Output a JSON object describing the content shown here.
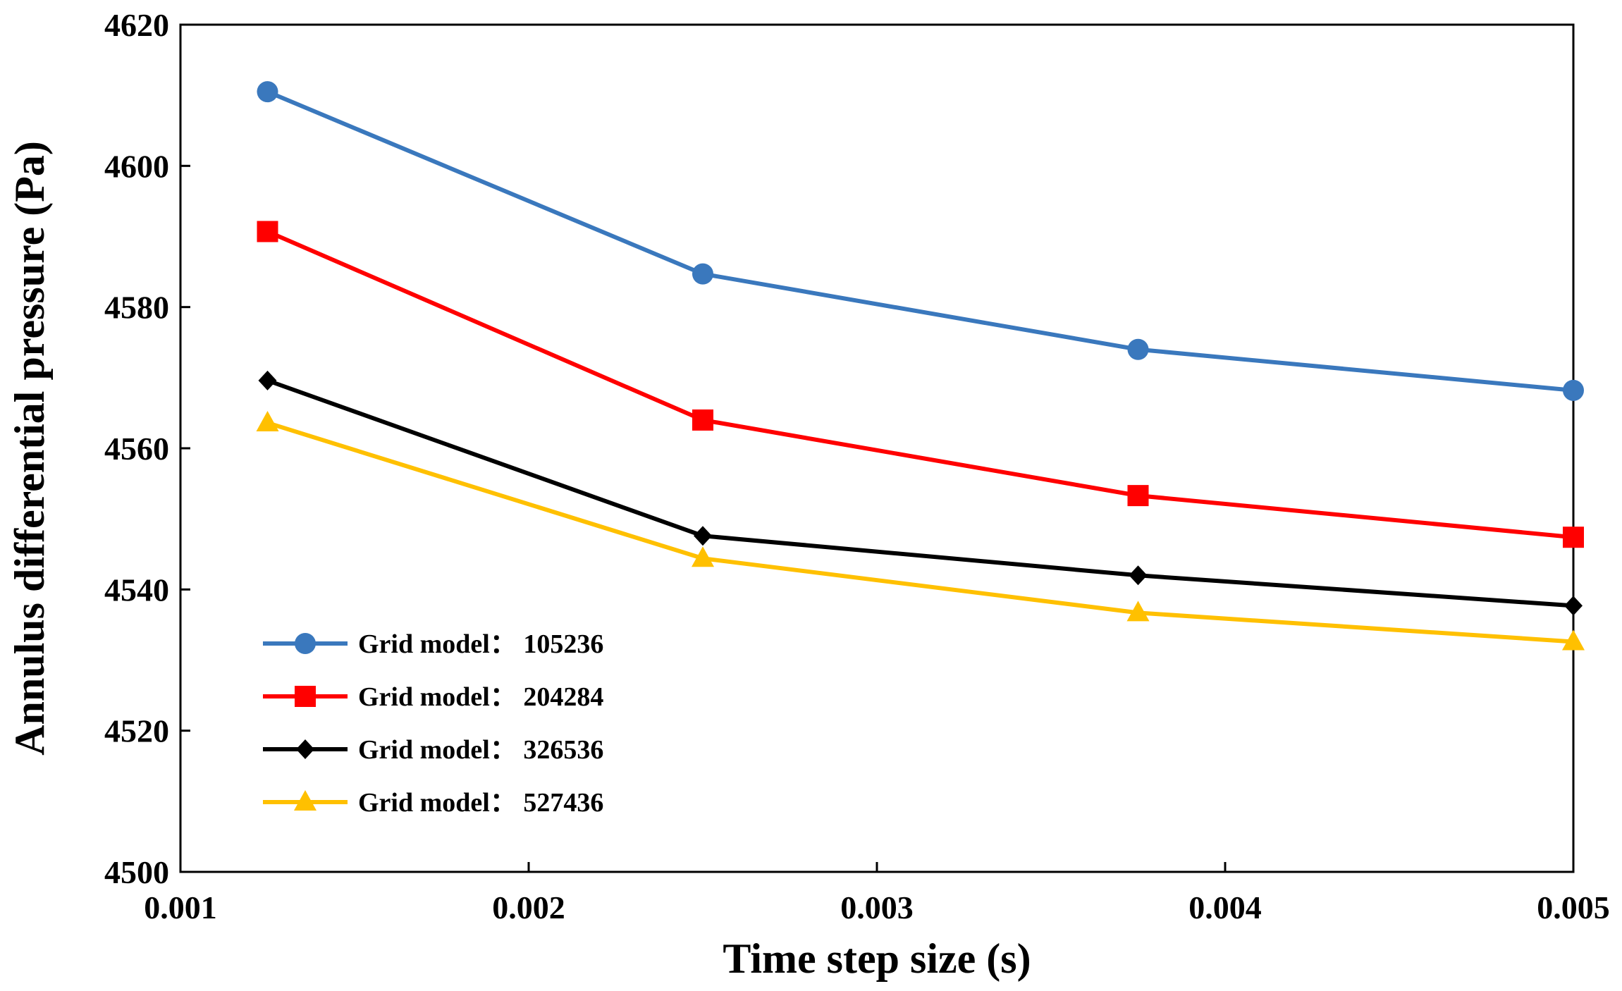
{
  "chart_data": {
    "type": "line",
    "xlabel": "Time step size (s)",
    "ylabel": "Annulus differential pressure (Pa)",
    "xlim": [
      0.001,
      0.005
    ],
    "ylim": [
      4500,
      4620
    ],
    "xticks": [
      0.001,
      0.002,
      0.003,
      0.004,
      0.005
    ],
    "xtick_labels": [
      "0.001",
      "0.002",
      "0.003",
      "0.004",
      "0.005"
    ],
    "yticks": [
      4500,
      4520,
      4540,
      4560,
      4580,
      4600,
      4620
    ],
    "ytick_labels": [
      "4500",
      "4520",
      "4540",
      "4560",
      "4580",
      "4600",
      "4620"
    ],
    "grid": false,
    "legend_position": "bottom-left",
    "x": [
      0.00125,
      0.0025,
      0.00375,
      0.005
    ],
    "series": [
      {
        "name": "Grid model： 105236",
        "color": "#3a78bd",
        "marker": "circle",
        "values": [
          4610.5,
          4584.7,
          4574.0,
          4568.2
        ]
      },
      {
        "name": "Grid model： 204284",
        "color": "#ff0000",
        "marker": "square",
        "values": [
          4590.7,
          4564.0,
          4553.3,
          4547.4
        ]
      },
      {
        "name": "Grid model： 326536",
        "color": "#000000",
        "marker": "diamond",
        "values": [
          4569.6,
          4547.6,
          4542.0,
          4537.7
        ]
      },
      {
        "name": "Grid model： 527436",
        "color": "#ffc000",
        "marker": "triangle",
        "values": [
          4563.6,
          4544.4,
          4536.7,
          4532.6
        ]
      }
    ]
  }
}
